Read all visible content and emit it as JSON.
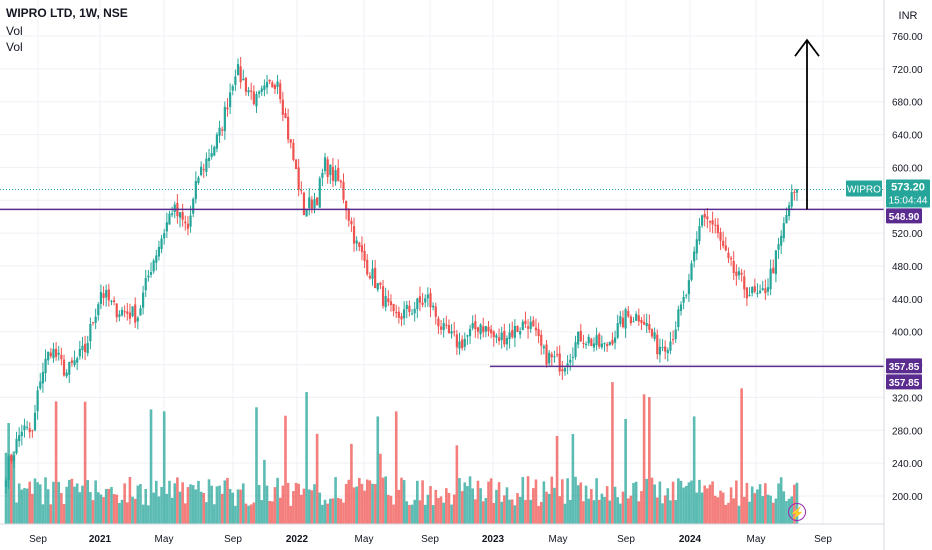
{
  "header": {
    "title": "WIPRO LTD, 1W, NSE",
    "indicator_1": "Vol",
    "indicator_2": "Vol"
  },
  "scale": {
    "currency": "INR"
  },
  "badges": {
    "symbol": "WIPRO",
    "last_price": "573.20",
    "countdown": "15:04:44",
    "resistance_label": "548.90",
    "support_label_a": "357.85",
    "support_label_b": "357.85"
  },
  "colors": {
    "up": "#26a69a",
    "down": "#ef5350",
    "level": "#5b2c8f",
    "grid": "#eef0f5"
  },
  "icons": {
    "event": "lightning-icon"
  },
  "chart_data": {
    "type": "candlestick",
    "title": "WIPRO LTD, 1W, NSE",
    "y_range": [
      170,
      770
    ],
    "y_ticks": [
      200,
      240,
      280,
      320,
      360,
      400,
      440,
      480,
      520,
      560,
      600,
      640,
      680,
      720,
      760
    ],
    "x_ticks": [
      "Sep",
      "2021",
      "May",
      "Sep",
      "2022",
      "May",
      "Sep",
      "2023",
      "May",
      "Sep",
      "2024",
      "May",
      "Sep"
    ],
    "last_price": 573.2,
    "levels": [
      {
        "value": 548.9,
        "label": "548.90"
      },
      {
        "value": 357.85,
        "label": "357.85"
      }
    ],
    "target_arrow": {
      "from": 548.9,
      "to": 755
    },
    "price_path": [
      [
        0,
        230
      ],
      [
        6,
        282
      ],
      [
        10,
        275
      ],
      [
        13,
        345
      ],
      [
        17,
        380
      ],
      [
        23,
        350
      ],
      [
        30,
        378
      ],
      [
        36,
        450
      ],
      [
        41,
        428
      ],
      [
        50,
        420
      ],
      [
        55,
        480
      ],
      [
        63,
        550
      ],
      [
        69,
        525
      ],
      [
        73,
        590
      ],
      [
        81,
        640
      ],
      [
        87,
        720
      ],
      [
        95,
        680
      ],
      [
        103,
        710
      ],
      [
        107,
        640
      ],
      [
        113,
        548
      ],
      [
        118,
        565
      ],
      [
        121,
        603
      ],
      [
        127,
        578
      ],
      [
        133,
        505
      ],
      [
        141,
        455
      ],
      [
        147,
        415
      ],
      [
        154,
        428
      ],
      [
        160,
        440
      ],
      [
        166,
        400
      ],
      [
        172,
        385
      ],
      [
        180,
        410
      ],
      [
        186,
        390
      ],
      [
        192,
        400
      ],
      [
        198,
        413
      ],
      [
        204,
        372
      ],
      [
        211,
        360
      ],
      [
        218,
        395
      ],
      [
        227,
        380
      ],
      [
        235,
        418
      ],
      [
        241,
        420
      ],
      [
        247,
        382
      ],
      [
        252,
        390
      ],
      [
        259,
        455
      ],
      [
        264,
        545
      ],
      [
        269,
        525
      ],
      [
        274,
        482
      ],
      [
        281,
        450
      ],
      [
        286,
        440
      ],
      [
        289,
        460
      ],
      [
        293,
        500
      ],
      [
        297,
        555
      ],
      [
        300,
        575
      ]
    ],
    "volume_scale": [
      0,
      140
    ]
  }
}
